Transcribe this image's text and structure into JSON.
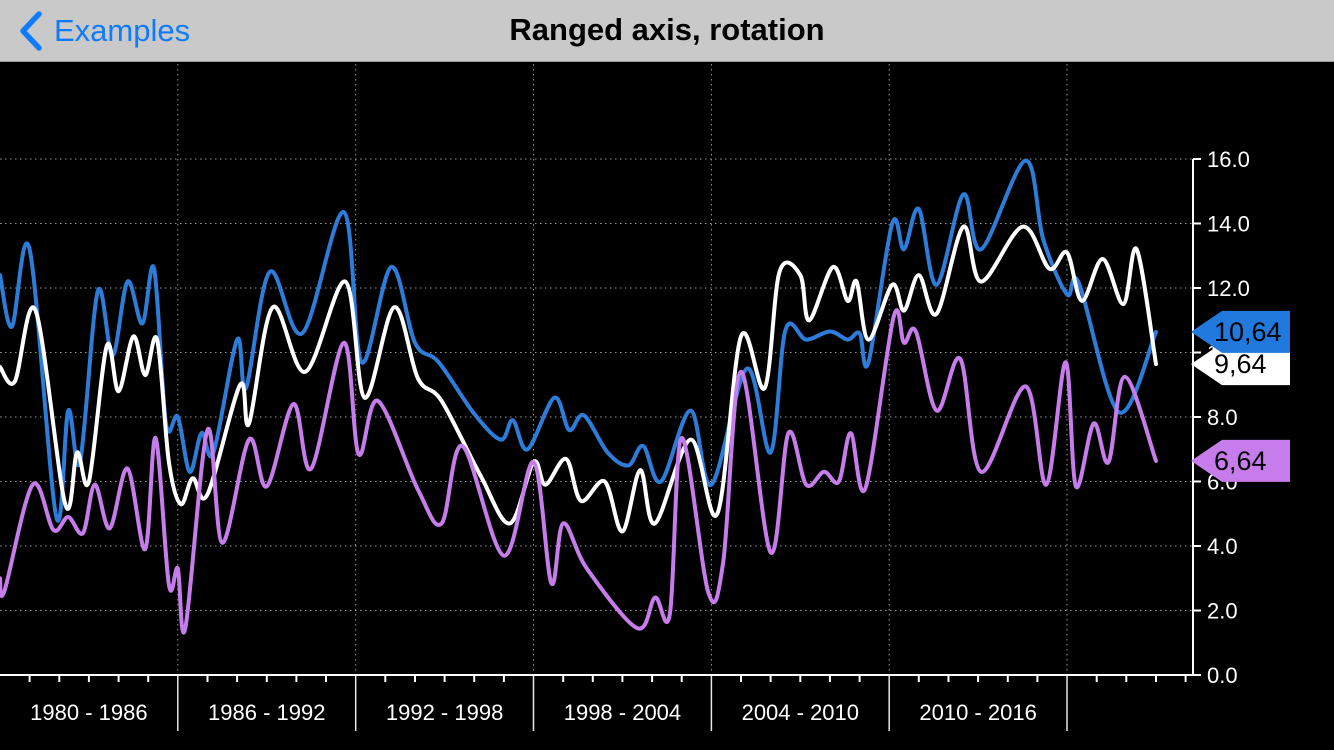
{
  "nav": {
    "back_label": "Examples",
    "title": "Ranged axis, rotation",
    "tint_color": "#0f7cff",
    "bar_color": "#c9c9c9"
  },
  "chart": {
    "background": "#000000",
    "grid_color": "#9a9a9a",
    "axis_color": "#ffffff",
    "band_separator_color": "#e6e6e6"
  },
  "chart_data": {
    "type": "line",
    "title": "",
    "xlabel": "",
    "ylabel": "",
    "grid": "dotted",
    "x_axis": {
      "unit": "year",
      "range": [
        1980,
        2020.3
      ],
      "minor_tick_every": 1,
      "bands": [
        {
          "label": "1980 - 1986",
          "start": 1980,
          "end": 1986
        },
        {
          "label": "1986 - 1992",
          "start": 1986,
          "end": 1992
        },
        {
          "label": "1992 - 1998",
          "start": 1992,
          "end": 1998
        },
        {
          "label": "1998 - 2004",
          "start": 1998,
          "end": 2004
        },
        {
          "label": "2004 - 2010",
          "start": 2004,
          "end": 2010
        },
        {
          "label": "2010 - 2016",
          "start": 2010,
          "end": 2016
        }
      ]
    },
    "y_axis": {
      "position": "right",
      "range": [
        0,
        16
      ],
      "tick_interval": 2,
      "ticks": [
        {
          "value": 0,
          "label": "0.0"
        },
        {
          "value": 2,
          "label": "2.0"
        },
        {
          "value": 4,
          "label": "4.0"
        },
        {
          "value": 6,
          "label": "6.0"
        },
        {
          "value": 8,
          "label": "8.0"
        },
        {
          "value": 10,
          "label": "10.0"
        },
        {
          "value": 12,
          "label": "12.0"
        },
        {
          "value": 14,
          "label": "14.0"
        },
        {
          "value": 16,
          "label": "16.0"
        }
      ]
    },
    "series": [
      {
        "name": "series-blue",
        "color": "#2c7dd9",
        "points": [
          [
            1980.0,
            12.4
          ],
          [
            1980.4,
            10.8
          ],
          [
            1981.0,
            13.2
          ],
          [
            1981.9,
            4.9
          ],
          [
            1982.3,
            8.2
          ],
          [
            1982.7,
            6.6
          ],
          [
            1983.3,
            11.9
          ],
          [
            1983.8,
            9.9
          ],
          [
            1984.3,
            12.2
          ],
          [
            1984.8,
            10.9
          ],
          [
            1985.2,
            12.6
          ],
          [
            1985.6,
            7.8
          ],
          [
            1986.0,
            8.0
          ],
          [
            1986.4,
            6.3
          ],
          [
            1986.8,
            7.5
          ],
          [
            1987.2,
            6.9
          ],
          [
            1988.0,
            10.4
          ],
          [
            1988.3,
            8.9
          ],
          [
            1989.1,
            12.5
          ],
          [
            1990.2,
            10.6
          ],
          [
            1991.6,
            14.35
          ],
          [
            1992.2,
            9.7
          ],
          [
            1993.2,
            12.65
          ],
          [
            1994.0,
            10.3
          ],
          [
            1994.8,
            9.7
          ],
          [
            1996.0,
            8.1
          ],
          [
            1996.9,
            7.3
          ],
          [
            1997.3,
            7.9
          ],
          [
            1997.8,
            7.0
          ],
          [
            1998.7,
            8.6
          ],
          [
            1999.2,
            7.6
          ],
          [
            1999.7,
            8.05
          ],
          [
            2000.5,
            6.9
          ],
          [
            2001.2,
            6.5
          ],
          [
            2001.7,
            7.1
          ],
          [
            2002.3,
            6.0
          ],
          [
            2003.3,
            8.2
          ],
          [
            2004.0,
            5.9
          ],
          [
            2005.2,
            9.5
          ],
          [
            2006.0,
            6.9
          ],
          [
            2006.5,
            10.7
          ],
          [
            2007.2,
            10.4
          ],
          [
            2008.0,
            10.65
          ],
          [
            2008.6,
            10.4
          ],
          [
            2009.0,
            10.6
          ],
          [
            2009.3,
            9.7
          ],
          [
            2010.1,
            14.0
          ],
          [
            2010.5,
            13.2
          ],
          [
            2011.0,
            14.45
          ],
          [
            2011.6,
            12.1
          ],
          [
            2012.5,
            14.9
          ],
          [
            2013.1,
            13.2
          ],
          [
            2014.6,
            15.95
          ],
          [
            2015.2,
            13.5
          ],
          [
            2016.0,
            11.8
          ],
          [
            2016.4,
            12.15
          ],
          [
            2017.75,
            8.15
          ],
          [
            2019.0,
            10.64
          ]
        ]
      },
      {
        "name": "series-white",
        "color": "#ffffff",
        "points": [
          [
            1980.0,
            9.55
          ],
          [
            1980.5,
            9.1
          ],
          [
            1981.2,
            11.3
          ],
          [
            1982.2,
            5.3
          ],
          [
            1982.6,
            6.9
          ],
          [
            1983.0,
            6.0
          ],
          [
            1983.6,
            10.2
          ],
          [
            1984.0,
            8.8
          ],
          [
            1984.5,
            10.5
          ],
          [
            1984.9,
            9.3
          ],
          [
            1985.3,
            10.4
          ],
          [
            1985.7,
            6.6
          ],
          [
            1986.1,
            5.3
          ],
          [
            1986.5,
            6.1
          ],
          [
            1987.0,
            5.6
          ],
          [
            1988.1,
            9.0
          ],
          [
            1988.4,
            7.8
          ],
          [
            1989.2,
            11.4
          ],
          [
            1990.3,
            9.4
          ],
          [
            1991.65,
            12.2
          ],
          [
            1992.3,
            8.6
          ],
          [
            1993.3,
            11.4
          ],
          [
            1994.1,
            9.2
          ],
          [
            1994.9,
            8.5
          ],
          [
            1996.2,
            6.2
          ],
          [
            1997.2,
            4.7
          ],
          [
            1998.0,
            6.6
          ],
          [
            1998.4,
            5.9
          ],
          [
            1999.1,
            6.7
          ],
          [
            1999.6,
            5.4
          ],
          [
            2000.4,
            6.0
          ],
          [
            2001.0,
            4.45
          ],
          [
            2001.6,
            6.35
          ],
          [
            2002.1,
            4.7
          ],
          [
            2003.3,
            7.3
          ],
          [
            2004.2,
            5.0
          ],
          [
            2005.0,
            10.5
          ],
          [
            2005.8,
            8.9
          ],
          [
            2006.3,
            12.5
          ],
          [
            2007.0,
            12.4
          ],
          [
            2007.3,
            11.0
          ],
          [
            2008.1,
            12.65
          ],
          [
            2008.6,
            11.6
          ],
          [
            2008.9,
            12.2
          ],
          [
            2009.3,
            10.4
          ],
          [
            2010.1,
            12.1
          ],
          [
            2010.5,
            11.3
          ],
          [
            2011.0,
            12.4
          ],
          [
            2011.6,
            11.2
          ],
          [
            2012.5,
            13.9
          ],
          [
            2013.1,
            12.2
          ],
          [
            2014.5,
            13.9
          ],
          [
            2015.4,
            12.6
          ],
          [
            2016.0,
            13.1
          ],
          [
            2016.5,
            11.6
          ],
          [
            2017.2,
            12.9
          ],
          [
            2017.9,
            11.5
          ],
          [
            2018.35,
            13.2
          ],
          [
            2019.0,
            9.64
          ]
        ]
      },
      {
        "name": "series-violet",
        "color": "#c77ceb",
        "points": [
          [
            1980.0,
            3.0
          ],
          [
            1980.15,
            2.6
          ],
          [
            1981.1,
            5.9
          ],
          [
            1981.8,
            4.5
          ],
          [
            1982.3,
            4.9
          ],
          [
            1982.8,
            4.4
          ],
          [
            1983.2,
            5.9
          ],
          [
            1983.7,
            4.55
          ],
          [
            1984.3,
            6.4
          ],
          [
            1984.9,
            3.9
          ],
          [
            1985.25,
            7.35
          ],
          [
            1985.7,
            2.8
          ],
          [
            1986.0,
            3.3
          ],
          [
            1986.25,
            1.45
          ],
          [
            1987.0,
            7.6
          ],
          [
            1987.5,
            4.1
          ],
          [
            1988.4,
            7.3
          ],
          [
            1989.0,
            5.85
          ],
          [
            1989.9,
            8.4
          ],
          [
            1990.5,
            6.4
          ],
          [
            1991.6,
            10.3
          ],
          [
            1992.1,
            6.85
          ],
          [
            1992.75,
            8.5
          ],
          [
            1994.1,
            5.75
          ],
          [
            1994.9,
            4.7
          ],
          [
            1995.6,
            7.1
          ],
          [
            1997.0,
            3.7
          ],
          [
            1998.0,
            6.6
          ],
          [
            1998.6,
            2.85
          ],
          [
            1999.0,
            4.7
          ],
          [
            1999.8,
            3.3
          ],
          [
            2001.5,
            1.45
          ],
          [
            2002.1,
            2.4
          ],
          [
            2002.6,
            1.9
          ],
          [
            2003.0,
            7.35
          ],
          [
            2003.9,
            2.55
          ],
          [
            2004.4,
            3.5
          ],
          [
            2005.0,
            9.4
          ],
          [
            2006.0,
            3.8
          ],
          [
            2006.6,
            7.5
          ],
          [
            2007.2,
            5.9
          ],
          [
            2007.8,
            6.3
          ],
          [
            2008.3,
            6.0
          ],
          [
            2008.7,
            7.5
          ],
          [
            2009.2,
            5.8
          ],
          [
            2010.15,
            11.1
          ],
          [
            2010.5,
            10.3
          ],
          [
            2010.9,
            10.65
          ],
          [
            2011.6,
            8.2
          ],
          [
            2012.4,
            9.8
          ],
          [
            2013.1,
            6.3
          ],
          [
            2014.6,
            8.95
          ],
          [
            2015.3,
            5.9
          ],
          [
            2015.95,
            9.7
          ],
          [
            2016.3,
            5.85
          ],
          [
            2016.9,
            7.8
          ],
          [
            2017.4,
            6.6
          ],
          [
            2017.95,
            9.25
          ],
          [
            2019.0,
            6.64
          ]
        ]
      }
    ],
    "axis_markers": [
      {
        "label": "9,64",
        "value": 9.64,
        "fill": "#ffffff",
        "text_color": "#000000"
      },
      {
        "label": "10,64",
        "value": 10.64,
        "fill": "#2178dd",
        "text_color": "#000000"
      },
      {
        "label": "6,64",
        "value": 6.64,
        "fill": "#c77ceb",
        "text_color": "#000000"
      }
    ],
    "legend_position": "none"
  }
}
